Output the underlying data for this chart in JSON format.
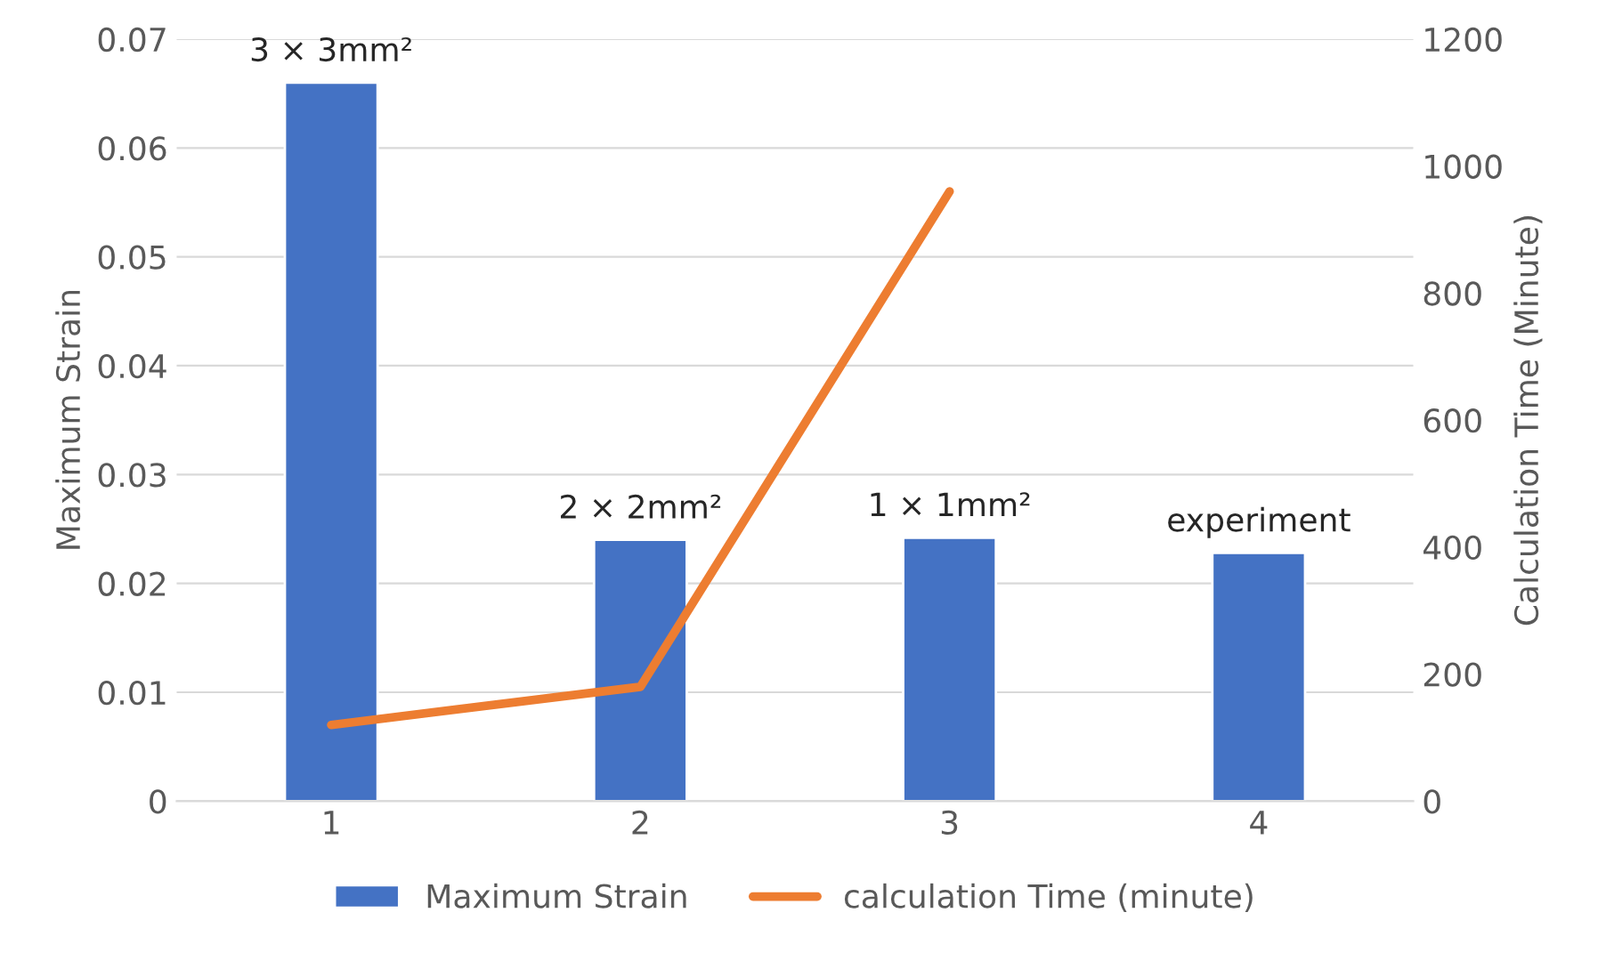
{
  "chart_data": {
    "type": "bar",
    "categories": [
      "1",
      "2",
      "3",
      "4"
    ],
    "ylabel": "Maximum Strain",
    "y2label": "Calculation Time (Minute)",
    "series": [
      {
        "name": "Maximum Strain",
        "color": "#4472c4",
        "values": [
          0.066,
          0.024,
          0.0242,
          0.0228
        ]
      },
      {
        "name": "calculation Time (minute)",
        "type": "line",
        "axis": "y2",
        "color": "#ed7d31",
        "values": [
          120,
          180,
          960,
          null
        ]
      }
    ],
    "ylim": [
      0,
      0.07
    ],
    "yticks": [
      0,
      0.01,
      0.02,
      0.03,
      0.04,
      0.05,
      0.06,
      0.07
    ],
    "y2lim": [
      0,
      1200
    ],
    "y2ticks": [
      0,
      200,
      400,
      600,
      800,
      1000,
      1200
    ],
    "annotations": [
      {
        "text": "3 × 3mm²",
        "x": "1",
        "y": 0.066
      },
      {
        "text": "2 × 2mm²",
        "x": "2",
        "y": 0.024
      },
      {
        "text": "1 × 1mm²",
        "x": "3",
        "y": 0.0242
      },
      {
        "text": "experiment",
        "x": "4",
        "y": 0.0228
      }
    ],
    "grid": "y",
    "legend": "bottom"
  }
}
